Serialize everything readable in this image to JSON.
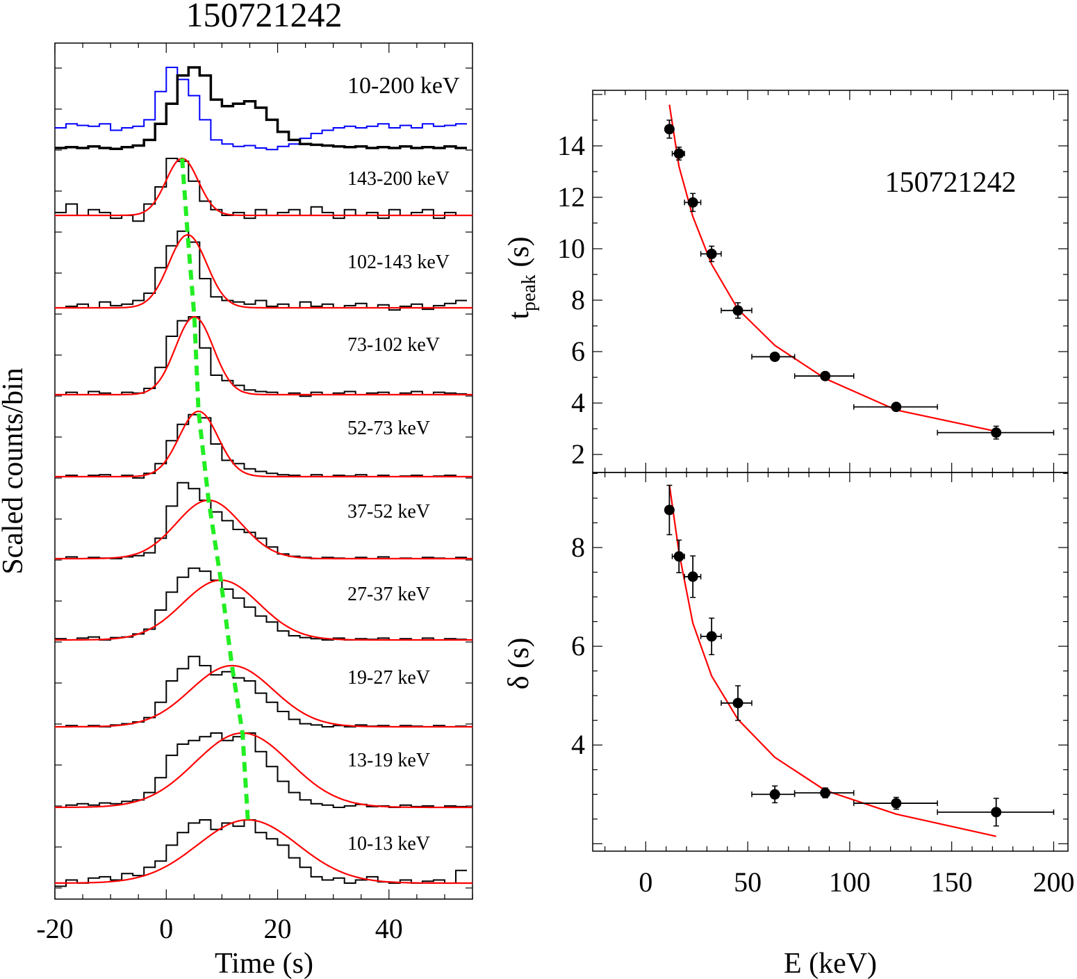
{
  "chart_data": [
    {
      "type": "line",
      "title": "150721242",
      "xlabel": "Time (s)",
      "ylabel": "Scaled counts/bin",
      "xlim": [
        -20,
        55
      ],
      "xticks": [
        "-20",
        "0",
        "20",
        "40"
      ],
      "bin_centers": [
        -19,
        -17,
        -15,
        -13,
        -11,
        -9,
        -7,
        -5,
        -3,
        -1,
        1,
        3,
        5,
        7,
        9,
        11,
        13,
        15,
        17,
        19,
        21,
        23,
        25,
        27,
        29,
        31,
        33,
        35,
        37,
        39,
        41,
        43,
        45,
        47,
        49,
        51,
        53
      ],
      "colors": {
        "histogram": "#000000",
        "comparison": "#0000ff",
        "fit": "#ff0000",
        "peak_trend": "#22ee22"
      },
      "top_band": {
        "label": "10-200 keV",
        "values": [
          0,
          0.01,
          0,
          0.02,
          0,
          -0.01,
          0.01,
          0.03,
          0.1,
          0.3,
          0.55,
          0.9,
          1.0,
          0.9,
          0.6,
          0.52,
          0.55,
          0.58,
          0.5,
          0.35,
          0.2,
          0.1,
          0.05,
          0.04,
          0.03,
          0.02,
          0.01,
          0.02,
          0,
          0.01,
          0,
          0.02,
          0,
          0.01,
          0,
          0.02,
          0
        ],
        "comparison_values": [
          0.25,
          0.3,
          0.28,
          0.27,
          0.3,
          0.22,
          0.25,
          0.27,
          0.35,
          0.7,
          1.0,
          0.85,
          0.65,
          0.35,
          0.1,
          0.05,
          0.02,
          0.03,
          0,
          -0.02,
          0.02,
          0.05,
          0.12,
          0.18,
          0.22,
          0.25,
          0.27,
          0.25,
          0.27,
          0.3,
          0.25,
          0.28,
          0.25,
          0.3,
          0.27,
          0.28,
          0.3
        ]
      },
      "bands": [
        {
          "label": "143-200 keV",
          "fit": {
            "peak_time": 2.85,
            "width": 2.9
          },
          "values": [
            0.05,
            0.2,
            0,
            0.1,
            0.05,
            -0.05,
            0,
            -0.1,
            0.2,
            0.5,
            1.0,
            0.95,
            0.6,
            0.25,
            0.1,
            0,
            0.05,
            -0.05,
            0.1,
            0,
            0.05,
            0.1,
            0,
            0.15,
            0.05,
            -0.05,
            0.1,
            0,
            0.05,
            -0.05,
            0.1,
            0,
            0.05,
            0.1,
            -0.05,
            0.05,
            0
          ]
        },
        {
          "label": "102-143 keV",
          "fit": {
            "peak_time": 3.85,
            "width": 3.4
          },
          "values": [
            0,
            0.02,
            0.05,
            0,
            0.08,
            0.03,
            0.05,
            0.1,
            0.2,
            0.55,
            0.85,
            1.05,
            0.9,
            0.4,
            0.15,
            0.1,
            0.08,
            0.05,
            0.1,
            0.02,
            0.05,
            0,
            0.08,
            0.02,
            0.05,
            0,
            0.03,
            0.06,
            0,
            0.04,
            -0.03,
            0.02,
            0.05,
            -0.02,
            0.03,
            0.06,
            0.1
          ]
        },
        {
          "label": "73-102 keV",
          "fit": {
            "peak_time": 5.05,
            "width": 3.4
          },
          "values": [
            0,
            0.03,
            0,
            0.04,
            0.02,
            0,
            0.03,
            0.02,
            0.08,
            0.35,
            0.75,
            0.95,
            1.0,
            0.6,
            0.25,
            0.18,
            0.12,
            0.06,
            0.04,
            0.03,
            0,
            0.02,
            -0.02,
            0.03,
            0,
            0.02,
            0.04,
            0,
            0.02,
            0.03,
            0,
            0.02,
            0.04,
            0,
            0.03,
            0.02,
            0.01
          ]
        },
        {
          "label": "52-73 keV",
          "fit": {
            "peak_time": 5.8,
            "width": 3.5
          },
          "values": [
            0,
            0.02,
            0,
            0.02,
            0.03,
            0,
            0.02,
            -0.02,
            0.05,
            0.2,
            0.55,
            0.8,
            0.95,
            0.9,
            0.5,
            0.25,
            0.2,
            0.12,
            0.08,
            0.05,
            0.03,
            0.02,
            0,
            0.03,
            0,
            0.02,
            0.01,
            0.03,
            0,
            0.02,
            0,
            0.01,
            0.02,
            0,
            0.01,
            0.02,
            0
          ]
        },
        {
          "label": "37-52 keV",
          "fit": {
            "peak_time": 7.6,
            "width": 5.8
          },
          "values": [
            0,
            0.03,
            0,
            0.02,
            0.01,
            0,
            0.03,
            0.05,
            0.1,
            0.35,
            0.9,
            1.3,
            1.2,
            1.0,
            0.8,
            0.65,
            0.5,
            0.45,
            0.35,
            0.2,
            0.08,
            0.04,
            0.02,
            0,
            0.02,
            0.01,
            0,
            0.02,
            0,
            0.03,
            0,
            0.01,
            0,
            0.02,
            0.01,
            0,
            0.02
          ]
        },
        {
          "label": "27-37 keV",
          "fit": {
            "peak_time": 9.8,
            "width": 6.9
          },
          "values": [
            0.02,
            0,
            0.03,
            0.05,
            0,
            0.04,
            0.05,
            0.1,
            0.18,
            0.5,
            0.8,
            1.05,
            1.2,
            1.15,
            1.0,
            0.85,
            0.7,
            0.55,
            0.4,
            0.3,
            0.15,
            0.07,
            0.04,
            0.02,
            0,
            0.03,
            0,
            0.02,
            0.01,
            0.03,
            0,
            0.02,
            0,
            0.03,
            0,
            0.02,
            0.01
          ]
        },
        {
          "label": "19-27 keV",
          "fit": {
            "peak_time": 11.8,
            "width": 7.4
          },
          "values": [
            0,
            0.02,
            0,
            0.02,
            0,
            0.03,
            0.05,
            0.08,
            0.15,
            0.4,
            0.75,
            0.95,
            1.15,
            1.0,
            0.85,
            0.9,
            0.8,
            0.75,
            0.55,
            0.4,
            0.25,
            0.12,
            0.05,
            0.03,
            0,
            0.02,
            0,
            0.03,
            0.01,
            0.02,
            0,
            0.02,
            0.01,
            0,
            0.02,
            0,
            0.01
          ]
        },
        {
          "label": "13-19 keV",
          "fit": {
            "peak_time": 13.7,
            "width": 8.5
          },
          "values": [
            0,
            0.03,
            0.05,
            0.03,
            0.06,
            0.05,
            0.08,
            0.1,
            0.2,
            0.4,
            0.7,
            0.85,
            0.9,
            0.95,
            1.0,
            0.9,
            0.95,
            1.0,
            0.75,
            0.55,
            0.35,
            0.2,
            0.1,
            0.05,
            0.03,
            0,
            0.02,
            0.04,
            0.01,
            0.02,
            0,
            0.03,
            0.01,
            0.02,
            0,
            0.02,
            0.01
          ]
        },
        {
          "label": "10-13 keV",
          "fit": {
            "peak_time": 14.65,
            "width": 9.0
          },
          "values": [
            -0.05,
            0.05,
            0,
            0.08,
            0.1,
            0.05,
            0.15,
            0.12,
            0.25,
            0.35,
            0.6,
            0.8,
            0.95,
            1.0,
            0.85,
            0.95,
            0.9,
            1.0,
            0.8,
            0.7,
            0.6,
            0.4,
            0.25,
            0.1,
            0.05,
            0.08,
            0,
            0.05,
            0.1,
            0.02,
            0,
            0.05,
            0,
            0.03,
            0.05,
            0,
            0.2
          ]
        }
      ]
    },
    {
      "type": "scatter",
      "annotation": "150721242",
      "xlabel": "E (keV)",
      "xlim": [
        -26,
        207
      ],
      "xticks": [
        "0",
        "50",
        "100",
        "150",
        "200"
      ],
      "colors": {
        "points": "#000000",
        "fit": "#ff0000"
      },
      "energy_bins": [
        [
          10,
          13
        ],
        [
          13,
          19
        ],
        [
          19,
          27
        ],
        [
          27,
          37
        ],
        [
          37,
          52
        ],
        [
          52,
          73
        ],
        [
          73,
          102
        ],
        [
          102,
          143
        ],
        [
          143,
          200
        ]
      ],
      "x": [
        11.6,
        16.3,
        23.1,
        32.3,
        45.2,
        63.3,
        88.0,
        122.8,
        171.8
      ],
      "panels": [
        {
          "ylabel_main": "t",
          "ylabel_sub": "peak",
          "ylabel_unit": " (s)",
          "ylim": [
            1.3,
            16.16
          ],
          "yticks": [
            "2",
            "4",
            "6",
            "8",
            "10",
            "12",
            "14"
          ],
          "y": [
            14.65,
            13.7,
            11.8,
            9.8,
            7.6,
            5.8,
            5.05,
            3.85,
            2.85
          ],
          "yerr": [
            0.35,
            0.25,
            0.35,
            0.3,
            0.3,
            0.12,
            0.12,
            0.12,
            0.25
          ],
          "fit": [
            15.6,
            13.2,
            11.25,
            9.4,
            7.65,
            6.24,
            4.95,
            3.73,
            2.9
          ]
        },
        {
          "ylabel_main": "δ",
          "ylabel_sub": "",
          "ylabel_unit": " (s)",
          "ylim": [
            1.85,
            9.52
          ],
          "yticks": [
            "4",
            "6",
            "8"
          ],
          "y": [
            8.76,
            7.82,
            7.41,
            6.2,
            4.85,
            3.0,
            3.03,
            2.82,
            2.64
          ],
          "yerr": [
            0.5,
            0.33,
            0.42,
            0.37,
            0.35,
            0.17,
            0.1,
            0.12,
            0.28
          ],
          "fit": [
            9.27,
            7.9,
            6.47,
            5.4,
            4.52,
            3.75,
            3.08,
            2.6,
            2.15
          ]
        }
      ]
    }
  ]
}
